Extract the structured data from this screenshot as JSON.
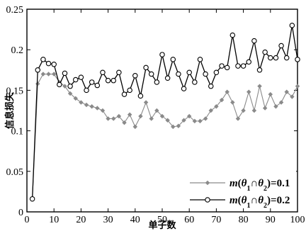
{
  "chart_data": {
    "type": "line",
    "xlabel": "单子数",
    "ylabel": "信息损失",
    "xlim": [
      0,
      100
    ],
    "ylim": [
      0,
      0.25
    ],
    "xticks": [
      "0",
      "10",
      "20",
      "30",
      "40",
      "50",
      "60",
      "70",
      "80",
      "90",
      "100"
    ],
    "yticks": [
      "0",
      "0.05",
      "0.1",
      "0.15",
      "0.2",
      "0.25"
    ],
    "grid": false,
    "legend_position": "bottom-right",
    "x": [
      2,
      4,
      6,
      8,
      10,
      12,
      14,
      16,
      18,
      20,
      22,
      24,
      26,
      28,
      30,
      32,
      34,
      36,
      38,
      40,
      42,
      44,
      46,
      48,
      50,
      52,
      54,
      56,
      58,
      60,
      62,
      64,
      66,
      68,
      70,
      72,
      74,
      76,
      78,
      80,
      82,
      84,
      86,
      88,
      90,
      92,
      94,
      96,
      98,
      100
    ],
    "series": [
      {
        "name": "m(θ1∩θ2)=0.1",
        "legend_parts": [
          "m",
          "(",
          "θ",
          "1",
          "∩",
          "θ",
          "2",
          ")=0.1"
        ],
        "color": "#8a8a8a",
        "marker": "diamond",
        "values": [
          0.016,
          0.158,
          0.17,
          0.17,
          0.17,
          0.16,
          0.155,
          0.146,
          0.14,
          0.135,
          0.132,
          0.13,
          0.128,
          0.125,
          0.115,
          0.115,
          0.118,
          0.11,
          0.12,
          0.105,
          0.118,
          0.135,
          0.115,
          0.125,
          0.118,
          0.113,
          0.105,
          0.106,
          0.113,
          0.118,
          0.112,
          0.112,
          0.115,
          0.125,
          0.13,
          0.138,
          0.148,
          0.135,
          0.115,
          0.125,
          0.148,
          0.125,
          0.155,
          0.128,
          0.145,
          0.13,
          0.135,
          0.148,
          0.142,
          0.155
        ]
      },
      {
        "name": "m(θ1∩θ2)=0.2",
        "legend_parts": [
          "m",
          "(",
          "θ",
          "1",
          "∩",
          "θ",
          "2",
          ")=0.2"
        ],
        "color": "#000000",
        "marker": "circle",
        "values": [
          0.016,
          0.175,
          0.188,
          0.183,
          0.182,
          0.157,
          0.171,
          0.155,
          0.163,
          0.166,
          0.15,
          0.16,
          0.156,
          0.172,
          0.162,
          0.162,
          0.172,
          0.145,
          0.15,
          0.168,
          0.143,
          0.178,
          0.17,
          0.16,
          0.194,
          0.165,
          0.188,
          0.17,
          0.152,
          0.172,
          0.16,
          0.188,
          0.17,
          0.155,
          0.172,
          0.18,
          0.178,
          0.218,
          0.18,
          0.18,
          0.185,
          0.211,
          0.175,
          0.197,
          0.19,
          0.19,
          0.205,
          0.19,
          0.23,
          0.188
        ]
      }
    ]
  }
}
